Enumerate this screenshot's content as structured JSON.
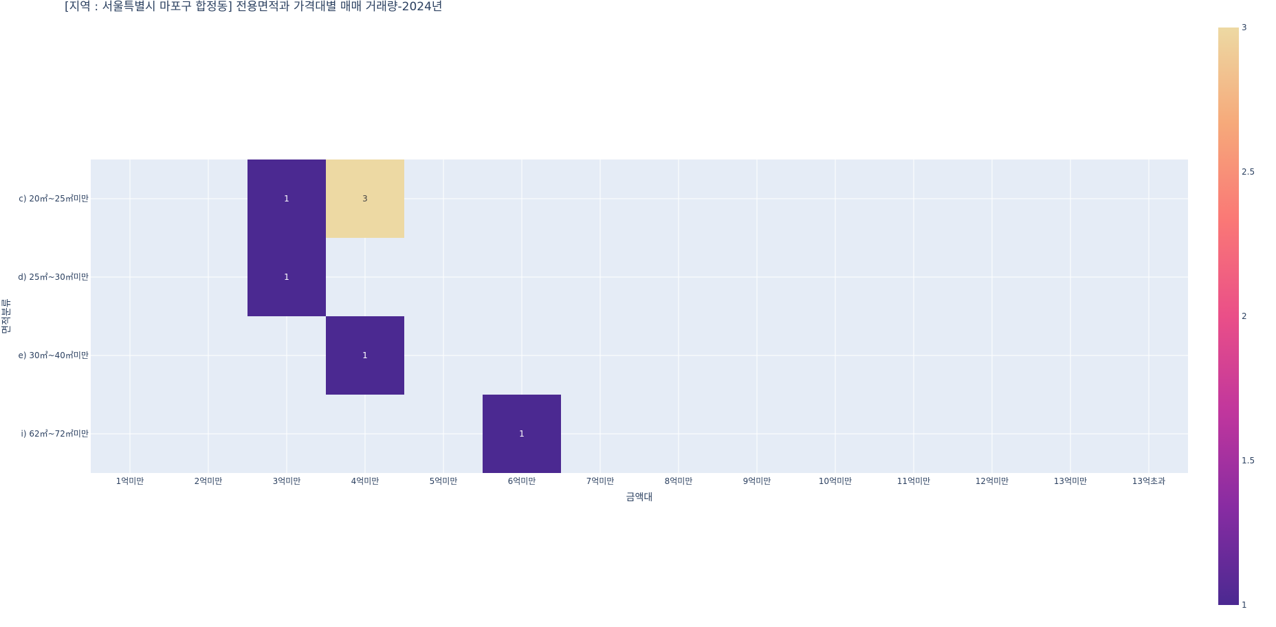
{
  "chart_data": {
    "type": "heatmap",
    "title": "[지역 : 서울특별시 마포구 합정동] 전용면적과 가격대별 매매 거래량-2024년",
    "xlabel": "금액대",
    "ylabel": "면적분류",
    "x_categories": [
      "1억미만",
      "2억미만",
      "3억미만",
      "4억미만",
      "5억미만",
      "6억미만",
      "7억미만",
      "8억미만",
      "9억미만",
      "10억미만",
      "11억미만",
      "12억미만",
      "13억미만",
      "13억초과"
    ],
    "y_categories": [
      "c) 20㎡~25㎡미만",
      "d) 25㎡~30㎡미만",
      "e) 30㎡~40㎡미만",
      "i) 62㎡~72㎡미만"
    ],
    "cells": [
      {
        "x": "3억미만",
        "y": "c) 20㎡~25㎡미만",
        "value": 1
      },
      {
        "x": "4억미만",
        "y": "c) 20㎡~25㎡미만",
        "value": 3
      },
      {
        "x": "3억미만",
        "y": "d) 25㎡~30㎡미만",
        "value": 1
      },
      {
        "x": "4억미만",
        "y": "e) 30㎡~40㎡미만",
        "value": 1
      },
      {
        "x": "6억미만",
        "y": "i) 62㎡~72㎡미만",
        "value": 1
      }
    ],
    "colorscale": {
      "min": 1,
      "max": 3,
      "ticks": [
        "1",
        "1.5",
        "2",
        "2.5",
        "3"
      ],
      "stops": [
        "#4b2991",
        "#872ca2",
        "#c0369d",
        "#ea4f88",
        "#fa7876",
        "#f6a97a",
        "#edd9a3"
      ]
    },
    "grid": true,
    "legend_placement": "right colorbar"
  }
}
